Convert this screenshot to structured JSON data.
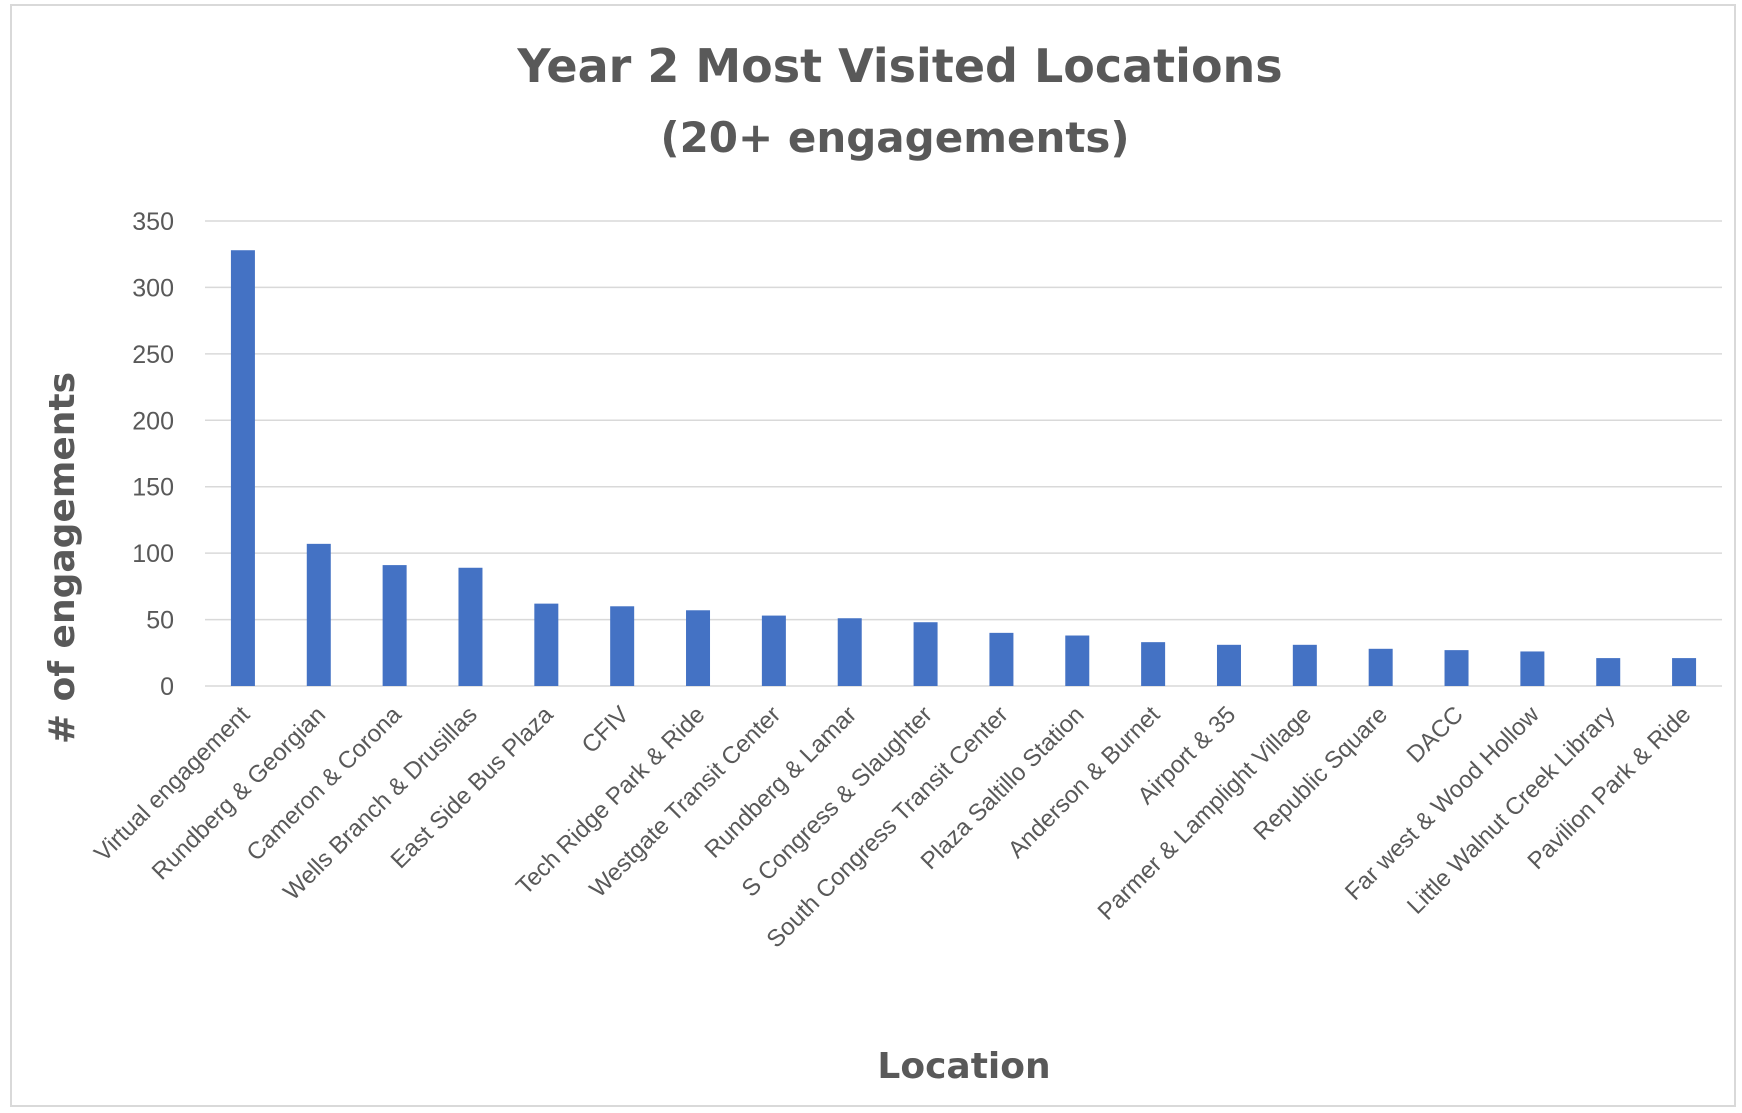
{
  "chart_data": {
    "type": "bar",
    "title": "Year 2 Most Visited Locations",
    "subtitle": "(20+ engagements)",
    "xlabel": "Location",
    "ylabel": "# of engagements",
    "ylim": [
      0,
      350
    ],
    "yticks": [
      0,
      50,
      100,
      150,
      200,
      250,
      300,
      350
    ],
    "grid": true,
    "legend": "none",
    "bar_color": "#4472c4",
    "categories": [
      "Virtual engagement",
      "Rundberg & Georgian",
      "Cameron & Corona",
      "Wells Branch & Drusillas",
      "East Side Bus Plaza",
      "CFIV",
      "Tech Ridge Park & Ride",
      "Westgate Transit Center",
      "Rundberg & Lamar",
      "S Congress & Slaughter",
      "South Congress Transit Center",
      "Plaza Saltillo Station",
      "Anderson & Burnet",
      "Airport & 35",
      "Parmer & Lamplight Village",
      "Republic Square",
      "DACC",
      "Far west & Wood Hollow",
      "Little Walnut Creek Library",
      "Pavilion Park & Ride"
    ],
    "values": [
      328,
      107,
      91,
      89,
      62,
      60,
      57,
      53,
      51,
      48,
      40,
      38,
      33,
      31,
      31,
      28,
      27,
      26,
      21,
      21
    ]
  }
}
